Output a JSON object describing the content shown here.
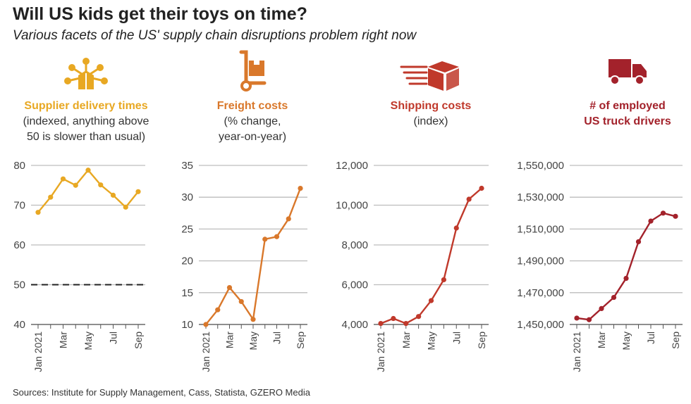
{
  "title": "Will US kids get their toys on time?",
  "subtitle": "Various facets of the US' supply chain disruptions problem right now",
  "sources": "Sources: Institute for Supply Management, Cass, Statista, GZERO Media",
  "colors": {
    "supplier": "#e8a823",
    "freight": "#d9782b",
    "shipping": "#c0392b",
    "drivers": "#a3222b",
    "grid": "#bdbdbd",
    "axis_text": "#444444"
  },
  "panels": [
    {
      "icon": "network-box-icon",
      "heading": "Supplier delivery times",
      "desc": [
        "(indexed, anything above",
        "50 is slower than usual)"
      ]
    },
    {
      "icon": "hand-truck-icon",
      "heading": "Freight costs",
      "desc": [
        "(% change,",
        "year-on-year)"
      ]
    },
    {
      "icon": "speeding-box-icon",
      "heading": "Shipping costs",
      "desc": [
        "(index)"
      ]
    },
    {
      "icon": "truck-icon",
      "heading": "# of employed",
      "desc": [
        "US truck drivers"
      ]
    }
  ],
  "chart_data": [
    {
      "type": "line",
      "title": "Supplier delivery times",
      "x": [
        "Jan 2021",
        "Feb",
        "Mar",
        "Apr",
        "May",
        "Jun",
        "Jul",
        "Aug",
        "Sep"
      ],
      "x_tick_labels": [
        "Jan 2021",
        "Mar",
        "May",
        "Jul",
        "Sep"
      ],
      "series": [
        {
          "values": [
            68.2,
            72.0,
            76.6,
            75.0,
            78.8,
            75.1,
            72.5,
            69.5,
            73.4
          ]
        }
      ],
      "ylim": [
        40,
        80
      ],
      "y_ticks": [
        "40",
        "50",
        "60",
        "70",
        "80"
      ],
      "reference_line": {
        "y": 50,
        "style": "dashed"
      },
      "grid": true
    },
    {
      "type": "line",
      "title": "Freight costs",
      "x": [
        "Jan 2021",
        "Feb",
        "Mar",
        "Apr",
        "May",
        "Jun",
        "Jul",
        "Aug",
        "Sep"
      ],
      "x_tick_labels": [
        "Jan 2021",
        "Mar",
        "May",
        "Jul",
        "Sep"
      ],
      "series": [
        {
          "values": [
            10.0,
            12.3,
            15.8,
            13.6,
            10.8,
            23.4,
            23.8,
            26.6,
            31.4
          ]
        }
      ],
      "ylim": [
        10,
        35
      ],
      "y_ticks": [
        "10",
        "15",
        "20",
        "25",
        "30",
        "35"
      ],
      "grid": true
    },
    {
      "type": "line",
      "title": "Shipping costs",
      "x": [
        "Jan 2021",
        "Feb",
        "Mar",
        "Apr",
        "May",
        "Jun",
        "Jul",
        "Aug",
        "Sep"
      ],
      "x_tick_labels": [
        "Jan 2021",
        "Mar",
        "May",
        "Jul",
        "Sep"
      ],
      "series": [
        {
          "values": [
            4050,
            4300,
            4050,
            4400,
            5200,
            6250,
            8850,
            10300,
            10850
          ]
        }
      ],
      "ylim": [
        4000,
        12000
      ],
      "y_ticks": [
        "4,000",
        "6,000",
        "8,000",
        "10,000",
        "12,000"
      ],
      "grid": true
    },
    {
      "type": "line",
      "title": "# of employed US truck drivers",
      "x": [
        "Jan 2021",
        "Feb",
        "Mar",
        "Apr",
        "May",
        "Jun",
        "Jul",
        "Aug",
        "Sep"
      ],
      "x_tick_labels": [
        "Jan 2021",
        "Mar",
        "May",
        "Jul",
        "Sep"
      ],
      "series": [
        {
          "values": [
            1454000,
            1453000,
            1460000,
            1467000,
            1479000,
            1502000,
            1515000,
            1520000,
            1518000
          ]
        }
      ],
      "ylim": [
        1450000,
        1550000
      ],
      "y_ticks": [
        "1,450,000",
        "1,470,000",
        "1,490,000",
        "1,510,000",
        "1,530,000",
        "1,550,000"
      ],
      "grid": true
    }
  ]
}
